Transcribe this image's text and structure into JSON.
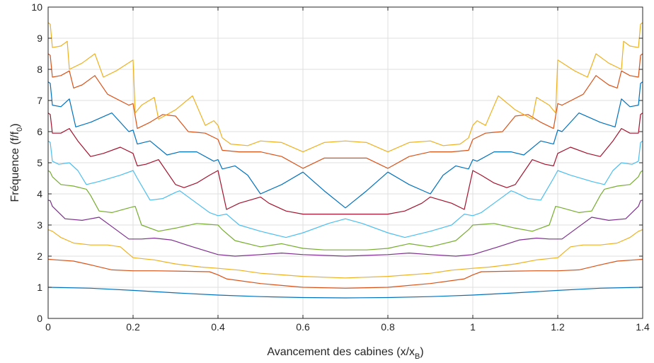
{
  "chart_data": {
    "type": "line",
    "title": "",
    "xlabel": "Avancement des cabines (x/x",
    "xlabel_sub": "B",
    "xlabel_end": ")",
    "ylabel": "Fréquence (f/f",
    "ylabel_sub": "0",
    "ylabel_end": ")",
    "xlim": [
      0,
      1.4
    ],
    "ylim": [
      0,
      10
    ],
    "xticks": [
      0,
      0.2,
      0.4,
      0.6,
      0.8,
      1,
      1.2,
      1.4
    ],
    "xtick_labels": [
      "0",
      "0.2",
      "0.4",
      "0.6",
      "0.8",
      "1",
      "1.2",
      "1.4"
    ],
    "yticks": [
      0,
      1,
      2,
      3,
      4,
      5,
      6,
      7,
      8,
      9,
      10
    ],
    "ytick_labels": [
      "0",
      "1",
      "2",
      "3",
      "4",
      "5",
      "6",
      "7",
      "8",
      "9",
      "10"
    ],
    "grid": true,
    "series": [
      {
        "color": "#0072bd",
        "x": [
          0,
          0.1,
          0.2,
          0.3,
          0.4,
          0.5,
          0.6,
          0.7
        ],
        "y": [
          1.0,
          0.97,
          0.9,
          0.82,
          0.75,
          0.7,
          0.67,
          0.66
        ]
      },
      {
        "color": "#d95319",
        "x": [
          0,
          0.02,
          0.06,
          0.1,
          0.15,
          0.2,
          0.25,
          0.3,
          0.38,
          0.4,
          0.42,
          0.5,
          0.6,
          0.7
        ],
        "y": [
          1.9,
          1.88,
          1.84,
          1.72,
          1.56,
          1.53,
          1.53,
          1.52,
          1.5,
          1.4,
          1.27,
          1.12,
          1.0,
          0.97
        ]
      },
      {
        "color": "#edb120",
        "x": [
          0,
          0.01,
          0.03,
          0.06,
          0.1,
          0.14,
          0.17,
          0.2,
          0.25,
          0.3,
          0.36,
          0.4,
          0.45,
          0.5,
          0.6,
          0.7
        ],
        "y": [
          2.85,
          2.8,
          2.6,
          2.42,
          2.36,
          2.36,
          2.3,
          1.95,
          1.88,
          1.75,
          1.65,
          1.61,
          1.55,
          1.45,
          1.35,
          1.3
        ]
      },
      {
        "color": "#7e2f8e",
        "x": [
          0,
          0.005,
          0.01,
          0.04,
          0.08,
          0.12,
          0.15,
          0.19,
          0.22,
          0.25,
          0.29,
          0.34,
          0.4,
          0.44,
          0.5,
          0.55,
          0.6,
          0.7
        ],
        "y": [
          3.8,
          3.78,
          3.6,
          3.2,
          3.15,
          3.25,
          2.95,
          2.55,
          2.55,
          2.58,
          2.52,
          2.3,
          2.05,
          2.0,
          2.05,
          2.1,
          2.05,
          2.0
        ]
      },
      {
        "color": "#77ac30",
        "x": [
          0,
          0.005,
          0.01,
          0.03,
          0.06,
          0.09,
          0.1,
          0.12,
          0.15,
          0.19,
          0.205,
          0.22,
          0.26,
          0.3,
          0.35,
          0.4,
          0.41,
          0.44,
          0.5,
          0.55,
          0.6,
          0.65,
          0.7
        ],
        "y": [
          4.75,
          4.7,
          4.55,
          4.3,
          4.25,
          4.15,
          3.95,
          3.45,
          3.4,
          3.55,
          3.6,
          3.0,
          2.8,
          2.9,
          3.05,
          3.0,
          2.85,
          2.5,
          2.3,
          2.4,
          2.25,
          2.2,
          2.2
        ]
      },
      {
        "color": "#4dbeee",
        "x": [
          0,
          0.005,
          0.01,
          0.025,
          0.05,
          0.07,
          0.09,
          0.12,
          0.17,
          0.2,
          0.21,
          0.24,
          0.27,
          0.3,
          0.31,
          0.34,
          0.38,
          0.4,
          0.42,
          0.45,
          0.5,
          0.56,
          0.6,
          0.66,
          0.7
        ],
        "y": [
          5.7,
          5.65,
          5.05,
          4.95,
          5.0,
          4.75,
          4.3,
          4.4,
          4.6,
          4.75,
          4.5,
          3.8,
          3.85,
          4.05,
          4.1,
          3.8,
          3.4,
          3.3,
          3.35,
          3.0,
          2.8,
          2.6,
          2.75,
          3.05,
          3.2
        ]
      },
      {
        "color": "#a2142f",
        "x": [
          0,
          0.005,
          0.01,
          0.03,
          0.05,
          0.07,
          0.1,
          0.13,
          0.17,
          0.2,
          0.21,
          0.23,
          0.26,
          0.3,
          0.32,
          0.35,
          0.38,
          0.4,
          0.42,
          0.45,
          0.5,
          0.52,
          0.56,
          0.6,
          0.65,
          0.7
        ],
        "y": [
          6.6,
          6.55,
          5.95,
          5.95,
          6.1,
          5.7,
          5.2,
          5.3,
          5.5,
          5.3,
          4.9,
          4.95,
          5.1,
          4.3,
          4.2,
          4.35,
          4.6,
          4.75,
          3.5,
          3.7,
          3.9,
          3.7,
          3.45,
          3.35,
          3.35,
          3.35
        ]
      },
      {
        "color": "#0072bd",
        "x": [
          0,
          0.005,
          0.01,
          0.03,
          0.05,
          0.065,
          0.1,
          0.15,
          0.19,
          0.2,
          0.21,
          0.24,
          0.28,
          0.31,
          0.35,
          0.39,
          0.4,
          0.41,
          0.44,
          0.47,
          0.5,
          0.55,
          0.6,
          0.65,
          0.7
        ],
        "y": [
          7.6,
          7.55,
          6.85,
          6.8,
          7.05,
          6.15,
          6.3,
          6.6,
          6.0,
          6.05,
          5.6,
          5.7,
          5.25,
          5.35,
          5.35,
          5.05,
          5.1,
          4.8,
          4.9,
          4.6,
          4.0,
          4.3,
          4.7,
          4.1,
          3.55
        ]
      },
      {
        "color": "#d95319",
        "x": [
          0,
          0.005,
          0.01,
          0.03,
          0.05,
          0.06,
          0.08,
          0.11,
          0.14,
          0.19,
          0.2,
          0.21,
          0.24,
          0.27,
          0.3,
          0.33,
          0.37,
          0.4,
          0.41,
          0.45,
          0.5,
          0.55,
          0.6,
          0.65,
          0.7
        ],
        "y": [
          8.5,
          8.45,
          7.75,
          7.8,
          7.95,
          7.4,
          7.5,
          7.8,
          7.2,
          6.85,
          6.9,
          6.1,
          6.3,
          6.55,
          6.5,
          6.0,
          5.95,
          5.75,
          5.4,
          5.35,
          5.35,
          5.2,
          4.82,
          5.15,
          5.15
        ]
      },
      {
        "color": "#edb120",
        "x": [
          0,
          0.005,
          0.01,
          0.03,
          0.045,
          0.05,
          0.08,
          0.11,
          0.13,
          0.16,
          0.2,
          0.205,
          0.22,
          0.25,
          0.26,
          0.3,
          0.34,
          0.37,
          0.39,
          0.4,
          0.41,
          0.43,
          0.47,
          0.5,
          0.55,
          0.6,
          0.65,
          0.7
        ],
        "y": [
          9.5,
          9.45,
          8.7,
          8.75,
          8.9,
          8.0,
          8.2,
          8.5,
          7.75,
          7.95,
          8.3,
          6.6,
          6.85,
          7.1,
          6.4,
          6.7,
          7.15,
          6.2,
          6.35,
          6.2,
          5.8,
          5.6,
          5.55,
          5.7,
          5.65,
          5.35,
          5.65,
          5.7
        ]
      }
    ]
  }
}
